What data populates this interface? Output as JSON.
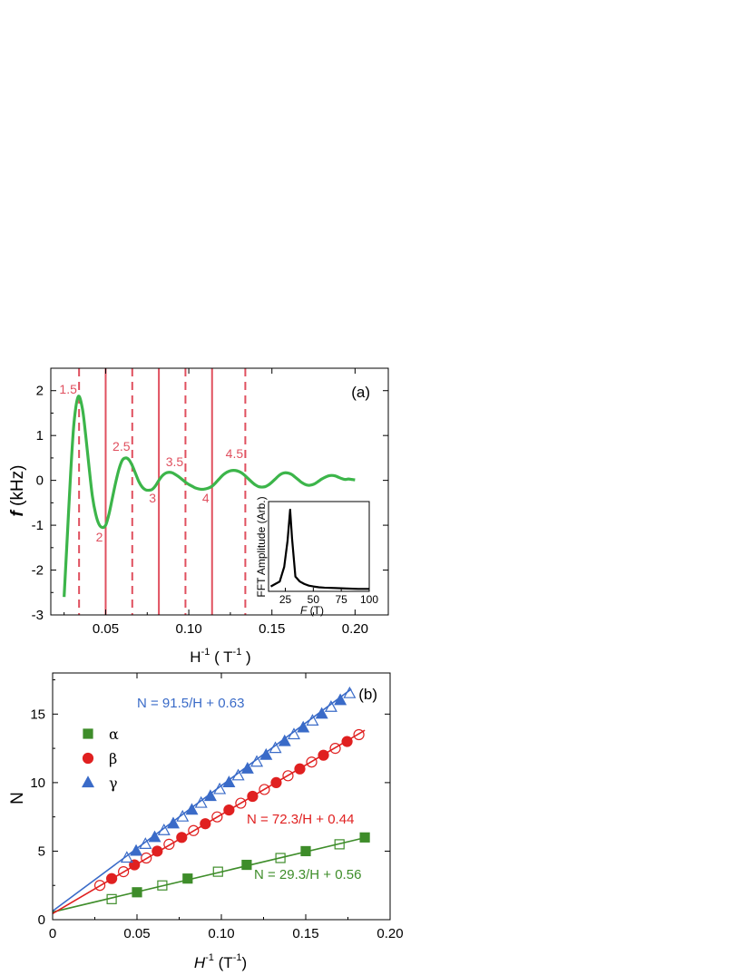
{
  "chart_data": [
    {
      "type": "line",
      "panel_label": "(a)",
      "xlabel": {
        "base": "H",
        "sup": "-1",
        "rest": " ( T",
        "rest_sup": "-1",
        "close": " )"
      },
      "ylabel": {
        "italic": "f",
        "rest": " (kHz)"
      },
      "xlim": [
        0.017,
        0.22
      ],
      "ylim": [
        -3,
        2.5
      ],
      "xticks": [
        0.05,
        0.1,
        0.15,
        0.2
      ],
      "xtick_labels": [
        "0.05",
        "0.10",
        "0.15",
        "0.20"
      ],
      "yticks": [
        -3,
        -2,
        -1,
        0,
        1,
        2
      ],
      "ytick_labels": [
        "-3",
        "-2",
        "-1",
        "0",
        "1",
        "2"
      ],
      "color": "#3cb54a",
      "series": [
        {
          "x": [
            0.025,
            0.027,
            0.029,
            0.031,
            0.0335,
            0.036,
            0.038,
            0.04,
            0.042,
            0.044,
            0.046,
            0.048,
            0.05,
            0.052,
            0.054,
            0.056,
            0.058,
            0.06,
            0.062,
            0.064,
            0.066,
            0.068,
            0.07,
            0.072,
            0.074,
            0.076,
            0.078,
            0.08,
            0.082,
            0.084,
            0.086,
            0.088,
            0.09,
            0.092,
            0.094,
            0.096,
            0.098,
            0.1,
            0.102,
            0.104,
            0.106,
            0.108,
            0.11,
            0.112,
            0.114,
            0.116,
            0.118,
            0.12,
            0.122,
            0.124,
            0.126,
            0.128,
            0.13,
            0.132,
            0.134,
            0.136,
            0.138,
            0.14,
            0.142,
            0.144,
            0.146,
            0.148,
            0.15,
            0.152,
            0.154,
            0.156,
            0.158,
            0.16,
            0.162,
            0.164,
            0.166,
            0.168,
            0.17,
            0.172,
            0.174,
            0.176,
            0.178,
            0.18,
            0.182,
            0.184,
            0.186,
            0.188,
            0.19,
            0.192,
            0.194,
            0.196,
            0.198,
            0.2
          ],
          "y": [
            -2.6,
            -1.2,
            0.2,
            1.3,
            1.87,
            1.6,
            1.0,
            0.3,
            -0.35,
            -0.75,
            -0.98,
            -1.05,
            -1.0,
            -0.75,
            -0.4,
            -0.05,
            0.25,
            0.45,
            0.5,
            0.46,
            0.33,
            0.15,
            -0.03,
            -0.15,
            -0.21,
            -0.22,
            -0.2,
            -0.12,
            0.0,
            0.1,
            0.16,
            0.18,
            0.17,
            0.13,
            0.08,
            0.02,
            -0.04,
            -0.09,
            -0.13,
            -0.17,
            -0.19,
            -0.2,
            -0.19,
            -0.17,
            -0.13,
            -0.06,
            0.02,
            0.1,
            0.16,
            0.2,
            0.22,
            0.22,
            0.2,
            0.16,
            0.1,
            0.03,
            -0.04,
            -0.1,
            -0.14,
            -0.15,
            -0.14,
            -0.1,
            -0.04,
            0.03,
            0.1,
            0.15,
            0.17,
            0.16,
            0.13,
            0.07,
            0.01,
            -0.05,
            -0.09,
            -0.11,
            -0.1,
            -0.07,
            -0.02,
            0.03,
            0.07,
            0.1,
            0.11,
            0.1,
            0.07,
            0.04,
            0.02,
            0.03,
            0.02,
            0.01
          ]
        }
      ],
      "ref_line_color": "#e0505f",
      "solid_lines": [
        {
          "x": 0.05,
          "label": "2"
        },
        {
          "x": 0.082,
          "label": "3"
        },
        {
          "x": 0.114,
          "label": "4"
        }
      ],
      "dashed_lines": [
        {
          "x": 0.034,
          "label": "1.5"
        },
        {
          "x": 0.066,
          "label": "2.5"
        },
        {
          "x": 0.098,
          "label": "3.5"
        },
        {
          "x": 0.134,
          "label": "4.5"
        }
      ],
      "inset": {
        "type": "line",
        "xlabel": {
          "italic": "F",
          "rest": " (T)"
        },
        "ylabel": "FFT Amplitude (Arb.)",
        "xlim": [
          10,
          100
        ],
        "ylim": [
          0,
          1.1
        ],
        "xticks": [
          25,
          50,
          75,
          100
        ],
        "xtick_labels": [
          "25",
          "50",
          "75",
          "100"
        ],
        "color": "#000000",
        "x": [
          12,
          16,
          20,
          24,
          27,
          29.3,
          31,
          34,
          38,
          42,
          46,
          50,
          55,
          60,
          70,
          80,
          90,
          100
        ],
        "y": [
          0.06,
          0.09,
          0.12,
          0.3,
          0.62,
          1.0,
          0.65,
          0.18,
          0.12,
          0.09,
          0.07,
          0.06,
          0.05,
          0.045,
          0.04,
          0.035,
          0.03,
          0.03
        ]
      }
    },
    {
      "type": "scatter",
      "panel_label": "(b)",
      "xlabel": {
        "italic": "H",
        "sup": "-1",
        "rest": " (T",
        "rest_sup": "-1",
        "close": ")"
      },
      "ylabel": "N",
      "xlim": [
        0,
        0.2
      ],
      "ylim": [
        0,
        18
      ],
      "xticks": [
        0,
        0.05,
        0.1,
        0.15,
        0.2
      ],
      "xtick_labels": [
        "0",
        "0.05",
        "0.10",
        "0.15",
        "0.20"
      ],
      "yticks": [
        0,
        5,
        10,
        15
      ],
      "ytick_labels": [
        "0",
        "5",
        "10",
        "15"
      ],
      "legend_position": "top-left",
      "series": [
        {
          "name": "α",
          "marker": "square",
          "color": "#3e8d2a",
          "filled": {
            "x": [
              0.05,
              0.08,
              0.115,
              0.15,
              0.185
            ],
            "y": [
              2,
              3,
              4,
              5,
              6
            ]
          },
          "open": {
            "x": [
              0.035,
              0.065,
              0.098,
              0.135,
              0.17
            ],
            "y": [
              1.5,
              2.5,
              3.5,
              4.5,
              5.5
            ]
          },
          "fit": {
            "slope": 29.3,
            "intercept": 0.56,
            "x_range": [
              0,
              0.185
            ],
            "label": "N = 29.3/H + 0.56"
          }
        },
        {
          "name": "β",
          "marker": "circle",
          "color": "#e02020",
          "filled": {
            "x": [
              0.035,
              0.0485,
              0.062,
              0.0765,
              0.0905,
              0.1045,
              0.1185,
              0.1325,
              0.1465,
              0.1605,
              0.1745
            ],
            "y": [
              3,
              4,
              5,
              6,
              7,
              8,
              9,
              10,
              11,
              12,
              13
            ]
          },
          "open": {
            "x": [
              0.028,
              0.042,
              0.0555,
              0.069,
              0.0835,
              0.0975,
              0.1115,
              0.1255,
              0.1395,
              0.1535,
              0.1675,
              0.1815
            ],
            "y": [
              2.5,
              3.5,
              4.5,
              5.5,
              6.5,
              7.5,
              8.5,
              9.5,
              10.5,
              11.5,
              12.5,
              13.5
            ]
          },
          "fit": {
            "slope": 72.3,
            "intercept": 0.44,
            "x_range": [
              0,
              0.185
            ],
            "label": "N = 72.3/H + 0.44"
          }
        },
        {
          "name": "γ",
          "marker": "triangle",
          "color": "#3a6bc8",
          "filled": {
            "x": [
              0.0495,
              0.0605,
              0.0715,
              0.0825,
              0.0935,
              0.1045,
              0.1155,
              0.1265,
              0.1375,
              0.1485,
              0.1595,
              0.1705
            ],
            "y": [
              5,
              6,
              7,
              8,
              9,
              10,
              11,
              12,
              13,
              14,
              15,
              16
            ]
          },
          "open": {
            "x": [
              0.044,
              0.055,
              0.066,
              0.077,
              0.088,
              0.099,
              0.11,
              0.121,
              0.132,
              0.143,
              0.154,
              0.165,
              0.176
            ],
            "y": [
              4.5,
              5.5,
              6.5,
              7.5,
              8.5,
              9.5,
              10.5,
              11.5,
              12.5,
              13.5,
              14.5,
              15.5,
              16.5
            ]
          },
          "fit": {
            "slope": 91.5,
            "intercept": 0.63,
            "x_range": [
              0,
              0.177
            ],
            "label": "N = 91.5/H + 0.63"
          }
        }
      ]
    }
  ]
}
